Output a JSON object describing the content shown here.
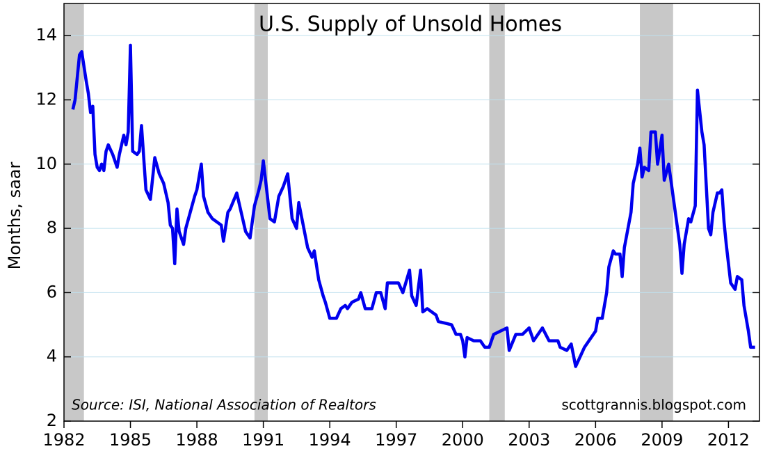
{
  "chart_data": {
    "type": "line",
    "title": "U.S. Supply of Unsold Homes",
    "y_label": "Months, saar",
    "source": "Source: ISI, National Association of Realtors",
    "credit": "scottgrannis.blogspot.com",
    "x": [
      1982.4,
      1982.5,
      1982.7,
      1982.8,
      1983.0,
      1983.1,
      1983.2,
      1983.3,
      1983.4,
      1983.5,
      1983.6,
      1983.7,
      1983.8,
      1983.9,
      1984.0,
      1984.2,
      1984.4,
      1984.5,
      1984.7,
      1984.8,
      1984.9,
      1985.0,
      1985.1,
      1985.3,
      1985.4,
      1985.5,
      1985.7,
      1985.9,
      1986.1,
      1986.3,
      1986.5,
      1986.7,
      1986.8,
      1986.9,
      1987.0,
      1987.1,
      1987.2,
      1987.4,
      1987.5,
      1987.7,
      1987.9,
      1988.0,
      1988.2,
      1988.3,
      1988.5,
      1988.7,
      1988.9,
      1989.1,
      1989.2,
      1989.4,
      1989.5,
      1989.8,
      1990.0,
      1990.2,
      1990.4,
      1990.6,
      1990.8,
      1990.9,
      1991.0,
      1991.2,
      1991.3,
      1991.5,
      1991.7,
      1991.9,
      1992.1,
      1992.3,
      1992.5,
      1992.6,
      1992.8,
      1993.0,
      1993.2,
      1993.3,
      1993.5,
      1993.7,
      1993.8,
      1994.0,
      1994.3,
      1994.5,
      1994.7,
      1994.8,
      1995.0,
      1995.3,
      1995.4,
      1995.6,
      1995.9,
      1996.1,
      1996.3,
      1996.5,
      1996.6,
      1997.1,
      1997.3,
      1997.6,
      1997.7,
      1997.9,
      1998.1,
      1998.2,
      1998.4,
      1998.8,
      1998.9,
      1999.5,
      1999.7,
      1999.9,
      2000.0,
      2000.1,
      2000.2,
      2000.5,
      2000.8,
      2001.0,
      2001.2,
      2001.4,
      2001.7,
      2002.0,
      2002.1,
      2002.4,
      2002.7,
      2003.0,
      2003.2,
      2003.5,
      2003.6,
      2003.9,
      2004.3,
      2004.4,
      2004.7,
      2004.9,
      2005.1,
      2005.3,
      2005.5,
      2005.8,
      2006.0,
      2006.1,
      2006.3,
      2006.5,
      2006.6,
      2006.8,
      2006.9,
      2007.1,
      2007.2,
      2007.3,
      2007.6,
      2007.7,
      2007.9,
      2008.0,
      2008.1,
      2008.2,
      2008.4,
      2008.5,
      2008.7,
      2008.8,
      2009.0,
      2009.1,
      2009.3,
      2009.4,
      2009.6,
      2009.8,
      2009.9,
      2010.0,
      2010.2,
      2010.3,
      2010.5,
      2010.6,
      2010.8,
      2010.9,
      2011.1,
      2011.2,
      2011.3,
      2011.5,
      2011.6,
      2011.7,
      2011.8,
      2011.9,
      2012.1,
      2012.3,
      2012.4,
      2012.6,
      2012.7,
      2012.9,
      2013.0,
      2013.2
    ],
    "series": [
      {
        "color": "#0000ee",
        "values": [
          11.7,
          12.0,
          13.4,
          13.5,
          12.6,
          12.2,
          11.6,
          11.8,
          10.3,
          9.9,
          9.8,
          10.0,
          9.8,
          10.4,
          10.6,
          10.3,
          9.9,
          10.3,
          10.9,
          10.6,
          11.0,
          13.7,
          10.4,
          10.3,
          10.4,
          11.2,
          9.2,
          8.9,
          10.2,
          9.7,
          9.4,
          8.8,
          8.1,
          8.0,
          6.9,
          8.6,
          7.9,
          7.5,
          8.0,
          8.5,
          9.0,
          9.2,
          10.0,
          9.0,
          8.5,
          8.3,
          8.2,
          8.1,
          7.6,
          8.5,
          8.6,
          9.1,
          8.5,
          7.9,
          7.7,
          8.7,
          9.2,
          9.5,
          10.1,
          8.9,
          8.3,
          8.2,
          9.0,
          9.3,
          9.7,
          8.3,
          8.0,
          8.8,
          8.1,
          7.4,
          7.1,
          7.3,
          6.4,
          5.9,
          5.7,
          5.2,
          5.2,
          5.5,
          5.6,
          5.5,
          5.7,
          5.8,
          6.0,
          5.5,
          5.5,
          6.0,
          6.0,
          5.5,
          6.3,
          6.3,
          6.0,
          6.7,
          5.9,
          5.6,
          6.7,
          5.4,
          5.5,
          5.3,
          5.1,
          5.0,
          4.7,
          4.7,
          4.5,
          4.0,
          4.6,
          4.5,
          4.5,
          4.3,
          4.3,
          4.7,
          4.8,
          4.9,
          4.2,
          4.7,
          4.7,
          4.9,
          4.5,
          4.8,
          4.9,
          4.5,
          4.5,
          4.3,
          4.2,
          4.4,
          3.7,
          4.0,
          4.3,
          4.6,
          4.8,
          5.2,
          5.2,
          6.0,
          6.8,
          7.3,
          7.2,
          7.2,
          6.5,
          7.4,
          8.5,
          9.4,
          10.0,
          10.5,
          9.6,
          9.9,
          9.8,
          11.0,
          11.0,
          10.0,
          10.9,
          9.5,
          10.0,
          9.5,
          8.5,
          7.5,
          6.6,
          7.5,
          8.3,
          8.2,
          8.7,
          12.3,
          11.0,
          10.6,
          8.0,
          7.8,
          8.5,
          9.1,
          9.1,
          9.2,
          8.2,
          7.5,
          6.3,
          6.1,
          6.5,
          6.4,
          5.6,
          4.8,
          4.3,
          4.3
        ]
      }
    ],
    "recessions": [
      [
        1982.0,
        1982.9
      ],
      [
        1990.6,
        1991.2
      ],
      [
        2001.2,
        2001.9
      ],
      [
        2008.0,
        2009.5
      ]
    ],
    "recession_color": "#c8c8c8",
    "xlim": [
      1982,
      2013.4
    ],
    "ylim": [
      2,
      15
    ],
    "xticks": [
      1982,
      1985,
      1988,
      1991,
      1994,
      1997,
      2000,
      2003,
      2006,
      2009,
      2012
    ],
    "yticks": [
      2,
      4,
      6,
      8,
      10,
      12,
      14
    ],
    "grid": true,
    "grid_color": "#bfe0ee"
  }
}
